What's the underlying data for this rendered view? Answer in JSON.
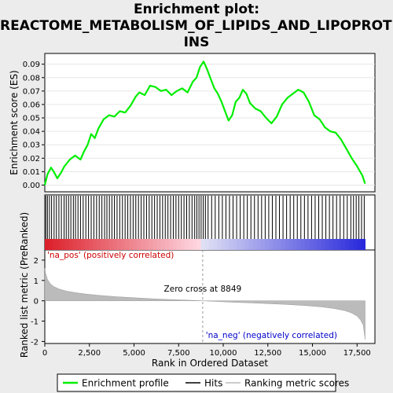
{
  "title_lines": [
    "Enrichment plot:",
    "REACTOME_METABOLISM_OF_LIPIDS_AND_LIPOPROTE",
    "INS"
  ],
  "chart_data": [
    {
      "type": "line",
      "name": "es-panel",
      "ylabel": "Enrichment score (ES)",
      "ylim": [
        -0.005,
        0.098
      ],
      "yticks": [
        0.0,
        0.01,
        0.02,
        0.03,
        0.04,
        0.05,
        0.06,
        0.07,
        0.08,
        0.09
      ],
      "ytick_labels": [
        "0.00",
        "0.01",
        "0.02",
        "0.03",
        "0.04",
        "0.05",
        "0.06",
        "0.07",
        "0.08",
        "0.09"
      ],
      "xlim": [
        0,
        18500
      ],
      "color": "#00ee00",
      "series": [
        {
          "name": "Enrichment profile",
          "x": [
            0,
            150,
            350,
            500,
            700,
            900,
            1100,
            1400,
            1700,
            2000,
            2200,
            2400,
            2600,
            2800,
            3000,
            3300,
            3600,
            3900,
            4200,
            4500,
            4800,
            5100,
            5300,
            5600,
            5900,
            6200,
            6500,
            6800,
            7100,
            7400,
            7700,
            8000,
            8300,
            8500,
            8700,
            8900,
            9100,
            9300,
            9500,
            9700,
            9900,
            10100,
            10300,
            10500,
            10700,
            10900,
            11100,
            11300,
            11500,
            11800,
            12100,
            12400,
            12700,
            13000,
            13300,
            13600,
            13900,
            14200,
            14500,
            14800,
            15100,
            15400,
            15700,
            16000,
            16300,
            16600,
            16900,
            17200,
            17500,
            17800,
            17950
          ],
          "y": [
            0.0,
            0.008,
            0.013,
            0.01,
            0.005,
            0.009,
            0.014,
            0.019,
            0.022,
            0.019,
            0.025,
            0.03,
            0.038,
            0.035,
            0.042,
            0.049,
            0.052,
            0.051,
            0.055,
            0.054,
            0.059,
            0.066,
            0.069,
            0.067,
            0.074,
            0.073,
            0.07,
            0.071,
            0.067,
            0.07,
            0.072,
            0.069,
            0.077,
            0.08,
            0.088,
            0.092,
            0.086,
            0.079,
            0.072,
            0.068,
            0.062,
            0.055,
            0.048,
            0.052,
            0.062,
            0.065,
            0.071,
            0.068,
            0.061,
            0.057,
            0.055,
            0.05,
            0.046,
            0.051,
            0.06,
            0.065,
            0.068,
            0.071,
            0.069,
            0.062,
            0.052,
            0.049,
            0.043,
            0.04,
            0.039,
            0.034,
            0.027,
            0.02,
            0.014,
            0.007,
            0.001
          ]
        }
      ]
    },
    {
      "type": "area",
      "name": "metric-panel",
      "xlabel": "Rank in Ordered Dataset",
      "ylabel": "Ranked list metric (PreRanked)",
      "ylim": [
        -2.1,
        2.5
      ],
      "yticks": [
        2,
        1,
        0,
        -1,
        -2
      ],
      "ytick_labels": [
        "2",
        "1",
        "0",
        "-1",
        "-2"
      ],
      "xlim": [
        0,
        18500
      ],
      "xticks": [
        0,
        2500,
        5000,
        7500,
        10000,
        12500,
        15000,
        17500
      ],
      "xtick_labels": [
        "0",
        "2,500",
        "5,000",
        "7,500",
        "10,000",
        "12,500",
        "15,000",
        "17,500"
      ],
      "color": "#bbbbbb",
      "zero_cross": 8849,
      "annotations": [
        "'na_pos' (positively correlated)",
        "Zero cross at 8849",
        "'na_neg' (negatively correlated)"
      ],
      "series": [
        {
          "name": "Ranking metric scores",
          "x": [
            0,
            50,
            150,
            300,
            500,
            800,
            1200,
            1700,
            2300,
            3000,
            4000,
            5000,
            6000,
            7000,
            8000,
            8849,
            9500,
            10500,
            11500,
            12500,
            13500,
            14500,
            15500,
            16200,
            16800,
            17200,
            17500,
            17700,
            17850,
            17950
          ],
          "y": [
            1.6,
            1.35,
            1.05,
            0.85,
            0.7,
            0.58,
            0.48,
            0.4,
            0.33,
            0.27,
            0.2,
            0.15,
            0.1,
            0.06,
            0.03,
            0.0,
            -0.03,
            -0.07,
            -0.1,
            -0.14,
            -0.18,
            -0.23,
            -0.3,
            -0.38,
            -0.48,
            -0.6,
            -0.75,
            -0.95,
            -1.2,
            -1.9
          ]
        }
      ]
    }
  ],
  "hits_panel": {
    "name": "Hits",
    "hit_ranks": [
      60,
      150,
      260,
      380,
      520,
      650,
      790,
      930,
      1080,
      1200,
      1330,
      1460,
      1600,
      1720,
      1860,
      2000,
      2150,
      2300,
      2450,
      2600,
      2750,
      2900,
      3050,
      3200,
      3350,
      3480,
      3620,
      3760,
      3900,
      4050,
      4200,
      4350,
      4500,
      4650,
      4800,
      4950,
      5100,
      5250,
      5400,
      5550,
      5700,
      5850,
      6000,
      6150,
      6300,
      6450,
      6600,
      6750,
      6900,
      7050,
      7200,
      7350,
      7500,
      7650,
      7800,
      7950,
      8100,
      8250,
      8400,
      8520,
      8640,
      8760,
      8880,
      9000,
      9150,
      9350,
      9550,
      9750,
      9950,
      10150,
      10350,
      10550,
      10750,
      10950,
      11150,
      11350,
      11550,
      11750,
      11950,
      12150,
      12350,
      12550,
      12750,
      12950,
      13150,
      13350,
      13550,
      13750,
      13950,
      14150,
      14350,
      14550,
      14750,
      14950,
      15150,
      15350,
      15550,
      15750,
      15950,
      16150,
      16350,
      16550,
      16750,
      16950,
      17150,
      17300,
      17450,
      17600,
      17750,
      17900
    ]
  },
  "legend": {
    "items": [
      {
        "label": "Enrichment profile",
        "color": "#00ee00"
      },
      {
        "label": "Hits",
        "color": "#000000"
      },
      {
        "label": "Ranking metric scores",
        "color": "#bbbbbb"
      }
    ]
  }
}
